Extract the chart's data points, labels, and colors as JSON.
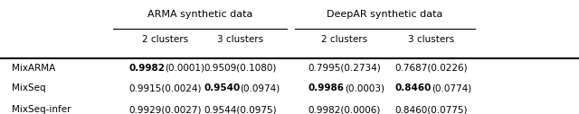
{
  "col_headers_top": [
    "ARMA synthetic data",
    "DeepAR synthetic data"
  ],
  "col_headers_sub": [
    "2 clusters",
    "3 clusters",
    "2 clusters",
    "3 clusters"
  ],
  "row_labels": [
    "MixARMA",
    "MixSeq",
    "MixSeq-infer"
  ],
  "cell_data": [
    [
      "0.9982(0.0001)",
      "0.9509(0.1080)",
      "0.7995(0.2734)",
      "0.7687(0.0226)"
    ],
    [
      "0.9915(0.0024)",
      "0.9540(0.0974)",
      "0.9986(0.0003)",
      "0.8460(0.0774)"
    ],
    [
      "0.9929(0.0027)",
      "0.9544(0.0975)",
      "0.9982(0.0006)",
      "0.8460(0.0775)"
    ]
  ],
  "bold_map": {
    "0,0": true,
    "1,1": true,
    "1,2": true,
    "1,3": true
  },
  "figsize": [
    6.4,
    1.27
  ],
  "dpi": 100,
  "bg_color": "#ffffff",
  "text_color": "#000000",
  "font_size": 7.5,
  "header_font_size": 8.0
}
